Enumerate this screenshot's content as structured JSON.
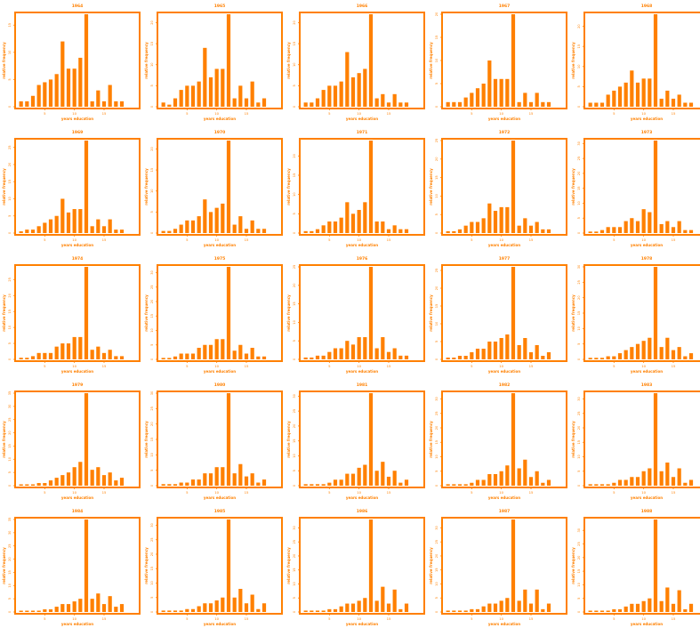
{
  "style": {
    "color": "#ff8000"
  },
  "shared": {
    "xlabel": "years education",
    "ylabel": "relative frequency",
    "xticks": [
      5,
      10,
      15
    ],
    "xlim": [
      0,
      21
    ]
  },
  "chart_data": [
    {
      "type": "bar",
      "title": "1964",
      "x": [
        1,
        2,
        3,
        4,
        5,
        6,
        7,
        8,
        9,
        10,
        11,
        12,
        13,
        14,
        15,
        16,
        17,
        18,
        19,
        20
      ],
      "values": [
        1,
        1,
        2,
        4,
        4.5,
        5,
        6,
        12,
        7,
        7,
        9,
        17,
        1,
        3,
        1,
        4,
        1,
        1,
        0,
        0
      ],
      "yticks": [
        0,
        5,
        10,
        15
      ],
      "ylim": [
        0,
        17
      ]
    },
    {
      "type": "bar",
      "title": "1965",
      "x": [
        1,
        2,
        3,
        4,
        5,
        6,
        7,
        8,
        9,
        10,
        11,
        12,
        13,
        14,
        15,
        16,
        17,
        18,
        19,
        20
      ],
      "values": [
        1,
        0.5,
        2,
        4,
        5,
        5,
        6,
        14,
        7,
        9,
        9,
        22,
        2,
        5,
        2,
        6,
        1,
        2,
        0,
        0
      ],
      "yticks": [
        0,
        5,
        10,
        15,
        20
      ],
      "ylim": [
        0,
        22
      ]
    },
    {
      "type": "bar",
      "title": "1966",
      "x": [
        1,
        2,
        3,
        4,
        5,
        6,
        7,
        8,
        9,
        10,
        11,
        12,
        13,
        14,
        15,
        16,
        17,
        18,
        19,
        20
      ],
      "values": [
        1,
        1,
        2,
        4,
        5,
        5,
        6,
        13,
        7,
        8,
        9,
        22,
        2,
        3,
        1,
        3,
        1,
        1,
        0,
        0
      ],
      "yticks": [
        0,
        5,
        10,
        15,
        20
      ],
      "ylim": [
        0,
        22
      ]
    },
    {
      "type": "bar",
      "title": "1967",
      "x": [
        1,
        2,
        3,
        4,
        5,
        6,
        7,
        8,
        9,
        10,
        11,
        12,
        13,
        14,
        15,
        16,
        17,
        18,
        19,
        20
      ],
      "values": [
        1,
        1,
        1,
        2,
        3,
        4,
        5,
        10,
        6,
        6,
        6,
        20,
        1,
        3,
        1,
        3,
        1,
        1,
        0,
        0
      ],
      "yticks": [
        0,
        5,
        10,
        15,
        20
      ],
      "ylim": [
        0,
        20
      ]
    },
    {
      "type": "bar",
      "title": "1968",
      "x": [
        1,
        2,
        3,
        4,
        5,
        6,
        7,
        8,
        9,
        10,
        11,
        12,
        13,
        14,
        15,
        16,
        17,
        18,
        19,
        20
      ],
      "values": [
        1,
        1,
        1,
        3,
        4,
        5,
        6,
        9,
        6,
        7,
        7,
        23,
        2,
        4,
        2,
        3,
        1,
        1,
        0,
        0
      ],
      "yticks": [
        0,
        5,
        10,
        15,
        20
      ],
      "ylim": [
        0,
        23
      ]
    },
    {
      "type": "bar",
      "title": "1969",
      "x": [
        1,
        2,
        3,
        4,
        5,
        6,
        7,
        8,
        9,
        10,
        11,
        12,
        13,
        14,
        15,
        16,
        17,
        18,
        19,
        20
      ],
      "values": [
        0.5,
        1,
        1,
        2,
        3,
        4,
        5,
        10,
        6,
        7,
        7,
        27,
        2,
        4,
        2,
        4,
        1,
        1,
        0,
        0
      ],
      "yticks": [
        0,
        5,
        10,
        15,
        20,
        25
      ],
      "ylim": [
        0,
        27
      ]
    },
    {
      "type": "bar",
      "title": "1970",
      "x": [
        1,
        2,
        3,
        4,
        5,
        6,
        7,
        8,
        9,
        10,
        11,
        12,
        13,
        14,
        15,
        16,
        17,
        18,
        19,
        20
      ],
      "values": [
        0.5,
        0.5,
        1,
        2,
        3,
        3,
        4,
        8,
        5,
        6,
        7,
        22,
        2,
        4,
        1,
        3,
        1,
        1,
        0,
        0
      ],
      "yticks": [
        0,
        5,
        10,
        15,
        20
      ],
      "ylim": [
        0,
        22
      ]
    },
    {
      "type": "bar",
      "title": "1971",
      "x": [
        1,
        2,
        3,
        4,
        5,
        6,
        7,
        8,
        9,
        10,
        11,
        12,
        13,
        14,
        15,
        16,
        17,
        18,
        19,
        20
      ],
      "values": [
        0.5,
        0.5,
        1,
        2,
        3,
        3,
        4,
        8,
        5,
        6,
        8,
        24,
        3,
        3,
        1,
        2,
        1,
        1,
        0,
        0
      ],
      "yticks": [
        0,
        5,
        10,
        15,
        20
      ],
      "ylim": [
        0,
        24
      ]
    },
    {
      "type": "bar",
      "title": "1972",
      "x": [
        1,
        2,
        3,
        4,
        5,
        6,
        7,
        8,
        9,
        10,
        11,
        12,
        13,
        14,
        15,
        16,
        17,
        18,
        19,
        20
      ],
      "values": [
        0.5,
        0.5,
        1,
        2,
        3,
        3,
        4,
        8,
        6,
        7,
        7,
        25,
        2,
        4,
        2,
        3,
        1,
        1,
        0,
        0
      ],
      "yticks": [
        0,
        5,
        10,
        15,
        20,
        25
      ],
      "ylim": [
        0,
        25
      ]
    },
    {
      "type": "bar",
      "title": "1973",
      "x": [
        1,
        2,
        3,
        4,
        5,
        6,
        7,
        8,
        9,
        10,
        11,
        12,
        13,
        14,
        15,
        16,
        17,
        18,
        19,
        20
      ],
      "values": [
        0.5,
        0.5,
        1,
        2,
        2,
        2,
        4,
        5,
        4,
        8,
        7,
        31,
        3,
        4,
        2,
        4,
        1,
        1,
        0,
        0
      ],
      "yticks": [
        0,
        5,
        10,
        15,
        20,
        25,
        30
      ],
      "ylim": [
        0,
        31
      ]
    },
    {
      "type": "bar",
      "title": "1974",
      "x": [
        1,
        2,
        3,
        4,
        5,
        6,
        7,
        8,
        9,
        10,
        11,
        12,
        13,
        14,
        15,
        16,
        17,
        18,
        19,
        20
      ],
      "values": [
        0.5,
        0.5,
        1,
        2,
        2,
        2,
        4,
        5,
        5,
        7,
        7,
        29,
        3,
        4,
        2,
        3,
        1,
        1,
        0,
        0
      ],
      "yticks": [
        0,
        5,
        10,
        15,
        20,
        25
      ],
      "ylim": [
        0,
        29
      ]
    },
    {
      "type": "bar",
      "title": "1975",
      "x": [
        1,
        2,
        3,
        4,
        5,
        6,
        7,
        8,
        9,
        10,
        11,
        12,
        13,
        14,
        15,
        16,
        17,
        18,
        19,
        20
      ],
      "values": [
        0.5,
        0.5,
        1,
        2,
        2,
        2,
        4,
        5,
        5,
        7,
        7,
        32,
        3,
        5,
        2,
        4,
        1,
        1,
        0,
        0
      ],
      "yticks": [
        0,
        5,
        10,
        15,
        20,
        25,
        30
      ],
      "ylim": [
        0,
        32
      ]
    },
    {
      "type": "bar",
      "title": "1976",
      "x": [
        1,
        2,
        3,
        4,
        5,
        6,
        7,
        8,
        9,
        10,
        11,
        12,
        13,
        14,
        15,
        16,
        17,
        18,
        19,
        20
      ],
      "values": [
        0.5,
        0.5,
        1,
        1,
        2,
        3,
        3,
        5,
        4,
        6,
        6,
        25,
        3,
        6,
        2,
        3,
        1,
        1,
        0,
        0
      ],
      "yticks": [
        0,
        5,
        10,
        15,
        20,
        25
      ],
      "ylim": [
        0,
        25
      ]
    },
    {
      "type": "bar",
      "title": "1977",
      "x": [
        1,
        2,
        3,
        4,
        5,
        6,
        7,
        8,
        9,
        10,
        11,
        12,
        13,
        14,
        15,
        16,
        17,
        18,
        19,
        20
      ],
      "values": [
        0.5,
        0.5,
        1,
        1,
        2,
        3,
        3,
        5,
        5,
        6,
        7,
        26,
        4,
        6,
        2,
        4,
        1,
        2,
        0,
        0
      ],
      "yticks": [
        0,
        5,
        10,
        15,
        20,
        25
      ],
      "ylim": [
        0,
        26
      ]
    },
    {
      "type": "bar",
      "title": "1978",
      "x": [
        1,
        2,
        3,
        4,
        5,
        6,
        7,
        8,
        9,
        10,
        11,
        12,
        13,
        14,
        15,
        16,
        17,
        18,
        19,
        20
      ],
      "values": [
        0.5,
        0.5,
        0.5,
        1,
        1,
        2,
        3,
        4,
        5,
        6,
        7,
        30,
        4,
        7,
        3,
        4,
        1,
        2,
        0,
        0
      ],
      "yticks": [
        0,
        5,
        10,
        15,
        20,
        25,
        30
      ],
      "ylim": [
        0,
        30
      ]
    },
    {
      "type": "bar",
      "title": "1979",
      "x": [
        1,
        2,
        3,
        4,
        5,
        6,
        7,
        8,
        9,
        10,
        11,
        12,
        13,
        14,
        15,
        16,
        17,
        18,
        19,
        20
      ],
      "values": [
        0.5,
        0.5,
        0.5,
        1,
        1,
        2,
        3,
        4,
        5,
        7,
        9,
        35,
        6,
        7,
        4,
        5,
        2,
        3,
        0,
        0
      ],
      "yticks": [
        0,
        5,
        10,
        15,
        20,
        25,
        30,
        35
      ],
      "ylim": [
        0,
        35
      ]
    },
    {
      "type": "bar",
      "title": "1980",
      "x": [
        1,
        2,
        3,
        4,
        5,
        6,
        7,
        8,
        9,
        10,
        11,
        12,
        13,
        14,
        15,
        16,
        17,
        18,
        19,
        20
      ],
      "values": [
        0.5,
        0.5,
        0.5,
        1,
        1,
        2,
        2,
        4,
        4,
        6,
        6,
        30,
        4,
        7,
        3,
        4,
        1,
        2,
        0,
        0
      ],
      "yticks": [
        0,
        5,
        10,
        15,
        20,
        25,
        30
      ],
      "ylim": [
        0,
        30
      ]
    },
    {
      "type": "bar",
      "title": "1981",
      "x": [
        1,
        2,
        3,
        4,
        5,
        6,
        7,
        8,
        9,
        10,
        11,
        12,
        13,
        14,
        15,
        16,
        17,
        18,
        19,
        20
      ],
      "values": [
        0.5,
        0.5,
        0.5,
        0.5,
        1,
        2,
        2,
        4,
        4,
        6,
        7,
        31,
        5,
        8,
        3,
        5,
        1,
        2,
        0,
        0
      ],
      "yticks": [
        0,
        5,
        10,
        15,
        20,
        25,
        30
      ],
      "ylim": [
        0,
        31
      ]
    },
    {
      "type": "bar",
      "title": "1982",
      "x": [
        1,
        2,
        3,
        4,
        5,
        6,
        7,
        8,
        9,
        10,
        11,
        12,
        13,
        14,
        15,
        16,
        17,
        18,
        19,
        20
      ],
      "values": [
        0.5,
        0.5,
        0.5,
        0.5,
        1,
        2,
        2,
        4,
        4,
        5,
        7,
        32,
        6,
        9,
        3,
        5,
        1,
        2,
        0,
        0
      ],
      "yticks": [
        0,
        5,
        10,
        15,
        20,
        25,
        30
      ],
      "ylim": [
        0,
        32
      ]
    },
    {
      "type": "bar",
      "title": "1983",
      "x": [
        1,
        2,
        3,
        4,
        5,
        6,
        7,
        8,
        9,
        10,
        11,
        12,
        13,
        14,
        15,
        16,
        17,
        18,
        19,
        20
      ],
      "values": [
        0.5,
        0.5,
        0.5,
        0.5,
        1,
        2,
        2,
        3,
        3,
        5,
        6,
        32,
        5,
        8,
        3,
        6,
        1,
        2,
        0,
        0
      ],
      "yticks": [
        0,
        5,
        10,
        15,
        20,
        25,
        30
      ],
      "ylim": [
        0,
        32
      ]
    },
    {
      "type": "bar",
      "title": "1984",
      "x": [
        1,
        2,
        3,
        4,
        5,
        6,
        7,
        8,
        9,
        10,
        11,
        12,
        13,
        14,
        15,
        16,
        17,
        18,
        19,
        20
      ],
      "values": [
        0.5,
        0.5,
        0.5,
        0.5,
        1,
        1,
        2,
        3,
        3,
        4,
        5,
        35,
        5,
        7,
        3,
        6,
        2,
        3,
        0,
        0
      ],
      "yticks": [
        0,
        5,
        10,
        15,
        20,
        25,
        30,
        35
      ],
      "ylim": [
        0,
        35
      ]
    },
    {
      "type": "bar",
      "title": "1985",
      "x": [
        1,
        2,
        3,
        4,
        5,
        6,
        7,
        8,
        9,
        10,
        11,
        12,
        13,
        14,
        15,
        16,
        17,
        18,
        19,
        20
      ],
      "values": [
        0.5,
        0.5,
        0.5,
        0.5,
        1,
        1,
        2,
        3,
        3,
        4,
        5,
        32,
        5,
        8,
        3,
        6,
        1,
        3,
        0,
        0
      ],
      "yticks": [
        0,
        5,
        10,
        15,
        20,
        25,
        30
      ],
      "ylim": [
        0,
        32
      ]
    },
    {
      "type": "bar",
      "title": "1986",
      "x": [
        1,
        2,
        3,
        4,
        5,
        6,
        7,
        8,
        9,
        10,
        11,
        12,
        13,
        14,
        15,
        16,
        17,
        18,
        19,
        20
      ],
      "values": [
        0.5,
        0.5,
        0.5,
        0.5,
        1,
        1,
        2,
        3,
        3,
        4,
        5,
        33,
        4,
        9,
        3,
        8,
        1,
        3,
        0,
        0
      ],
      "yticks": [
        0,
        5,
        10,
        15,
        20,
        25,
        30
      ],
      "ylim": [
        0,
        33
      ]
    },
    {
      "type": "bar",
      "title": "1987",
      "x": [
        1,
        2,
        3,
        4,
        5,
        6,
        7,
        8,
        9,
        10,
        11,
        12,
        13,
        14,
        15,
        16,
        17,
        18,
        19,
        20
      ],
      "values": [
        0.5,
        0.5,
        0.5,
        0.5,
        1,
        1,
        2,
        3,
        3,
        4,
        5,
        33,
        4,
        8,
        3,
        8,
        1,
        3,
        0,
        0
      ],
      "yticks": [
        0,
        5,
        10,
        15,
        20,
        25,
        30
      ],
      "ylim": [
        0,
        33
      ]
    },
    {
      "type": "bar",
      "title": "1988",
      "x": [
        1,
        2,
        3,
        4,
        5,
        6,
        7,
        8,
        9,
        10,
        11,
        12,
        13,
        14,
        15,
        16,
        17,
        18,
        19,
        20
      ],
      "values": [
        0.5,
        0.5,
        0.5,
        0.5,
        1,
        1,
        2,
        3,
        3,
        4,
        5,
        34,
        4,
        9,
        3,
        8,
        1,
        3,
        0,
        0
      ],
      "yticks": [
        0,
        5,
        10,
        15,
        20,
        25,
        30
      ],
      "ylim": [
        0,
        34
      ]
    }
  ]
}
